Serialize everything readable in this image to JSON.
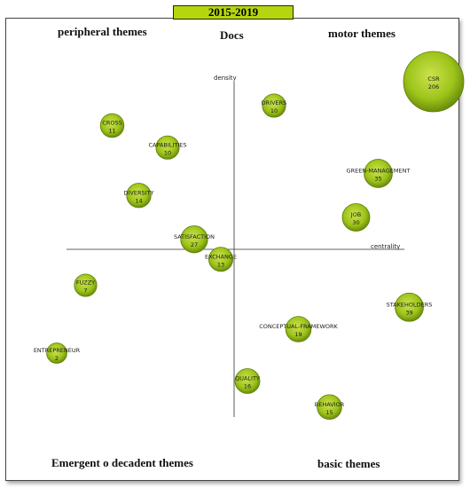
{
  "header": {
    "period": "2015-2019",
    "title": "Docs"
  },
  "quadrants": {
    "top_left": "peripheral themes",
    "top_right": "motor themes",
    "bottom_left": "Emergent o decadent themes",
    "bottom_right": "basic themes"
  },
  "colors": {
    "bubble_fill": "#9dc41a",
    "bubble_dark": "#5f7d08",
    "bubble_light": "#c8e04a",
    "header_fill": "#b5d60e"
  },
  "chart_data": {
    "type": "scatter",
    "xlabel": "centrality",
    "ylabel": "density",
    "grid": false,
    "points": [
      {
        "label": "CSR",
        "value": 206,
        "x": 0.9,
        "y": 0.84
      },
      {
        "label": "DRIVERS",
        "value": 10,
        "x": 0.18,
        "y": 0.72
      },
      {
        "label": "CROSS",
        "value": 11,
        "x": -0.55,
        "y": 0.62
      },
      {
        "label": "CAPABILITIES",
        "value": 10,
        "x": -0.3,
        "y": 0.51
      },
      {
        "label": "GREEN-MANAGEMENT",
        "value": 35,
        "x": 0.65,
        "y": 0.38
      },
      {
        "label": "DIVERSITY",
        "value": 14,
        "x": -0.43,
        "y": 0.27
      },
      {
        "label": "JOB",
        "value": 30,
        "x": 0.55,
        "y": 0.16
      },
      {
        "label": "SATISFACTION",
        "value": 27,
        "x": -0.18,
        "y": 0.05
      },
      {
        "label": "EXCHANGE",
        "value": 13,
        "x": -0.06,
        "y": -0.05
      },
      {
        "label": "FUZZY",
        "value": 7,
        "x": -0.67,
        "y": -0.18
      },
      {
        "label": "STAKEHOLDERS",
        "value": 39,
        "x": 0.79,
        "y": -0.29
      },
      {
        "label": "CONCEPTUAL-FRAMEWORK",
        "value": 19,
        "x": 0.29,
        "y": -0.4
      },
      {
        "label": "ENTREPRENEUR",
        "value": 2,
        "x": -0.8,
        "y": -0.52
      },
      {
        "label": "QUALITY",
        "value": 16,
        "x": 0.06,
        "y": -0.66
      },
      {
        "label": "BEHAVIOR",
        "value": 15,
        "x": 0.43,
        "y": -0.79
      }
    ]
  }
}
